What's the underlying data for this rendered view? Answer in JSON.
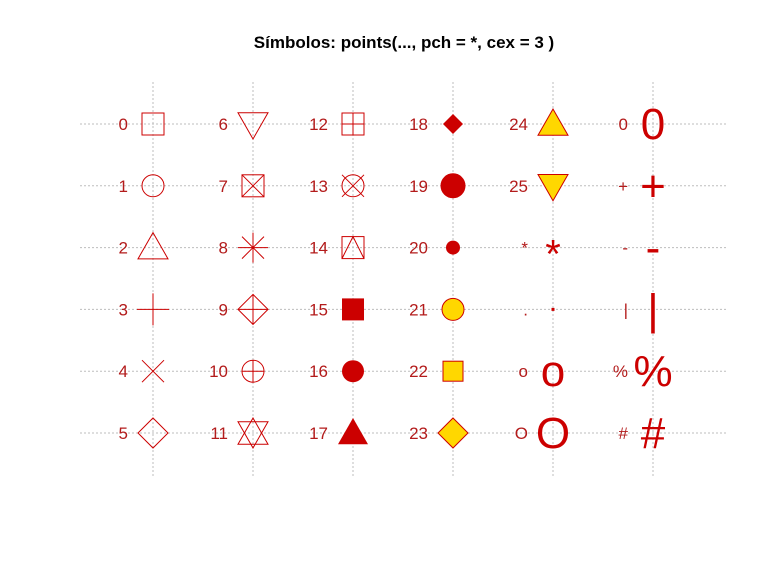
{
  "title": "Símbolos:  points(..., pch = *, cex = 3 )",
  "colors": {
    "border": "#cc0000",
    "fill": "#cc0000",
    "bg_fill": "#ffd700",
    "label": "#b31b1b",
    "grid": "#bdbdbd"
  },
  "chart_data": {
    "type": "scatter",
    "title": "Símbolos:  points(..., pch = *, cex = 3 )",
    "xlim": [
      1,
      6
    ],
    "ylim": [
      1,
      6
    ],
    "grid": true,
    "columns": [
      {
        "x": 1,
        "symbols": [
          {
            "label": "0",
            "pch": 0
          },
          {
            "label": "1",
            "pch": 1
          },
          {
            "label": "2",
            "pch": 2
          },
          {
            "label": "3",
            "pch": 3
          },
          {
            "label": "4",
            "pch": 4
          },
          {
            "label": "5",
            "pch": 5
          }
        ]
      },
      {
        "x": 2,
        "symbols": [
          {
            "label": "6",
            "pch": 6
          },
          {
            "label": "7",
            "pch": 7
          },
          {
            "label": "8",
            "pch": 8
          },
          {
            "label": "9",
            "pch": 9
          },
          {
            "label": "10",
            "pch": 10
          },
          {
            "label": "11",
            "pch": 11
          }
        ]
      },
      {
        "x": 3,
        "symbols": [
          {
            "label": "12",
            "pch": 12
          },
          {
            "label": "13",
            "pch": 13
          },
          {
            "label": "14",
            "pch": 14
          },
          {
            "label": "15",
            "pch": 15
          },
          {
            "label": "16",
            "pch": 16
          },
          {
            "label": "17",
            "pch": 17
          }
        ]
      },
      {
        "x": 4,
        "symbols": [
          {
            "label": "18",
            "pch": 18
          },
          {
            "label": "19",
            "pch": 19
          },
          {
            "label": "20",
            "pch": 20
          },
          {
            "label": "21",
            "pch": 21
          },
          {
            "label": "22",
            "pch": 22
          },
          {
            "label": "23",
            "pch": 23
          }
        ]
      },
      {
        "x": 5,
        "symbols": [
          {
            "label": "24",
            "pch": 24
          },
          {
            "label": "25",
            "pch": 25
          },
          {
            "label": "*",
            "pch": "*"
          },
          {
            "label": ".",
            "pch": "."
          },
          {
            "label": "o",
            "pch": "o"
          },
          {
            "label": "O",
            "pch": "O"
          }
        ]
      },
      {
        "x": 6,
        "symbols": [
          {
            "label": "0",
            "pch": "0"
          },
          {
            "label": "+",
            "pch": "+"
          },
          {
            "label": "-",
            "pch": "-"
          },
          {
            "label": "|",
            "pch": "|"
          },
          {
            "label": "%",
            "pch": "%"
          },
          {
            "label": "#",
            "pch": "#"
          }
        ]
      }
    ]
  }
}
